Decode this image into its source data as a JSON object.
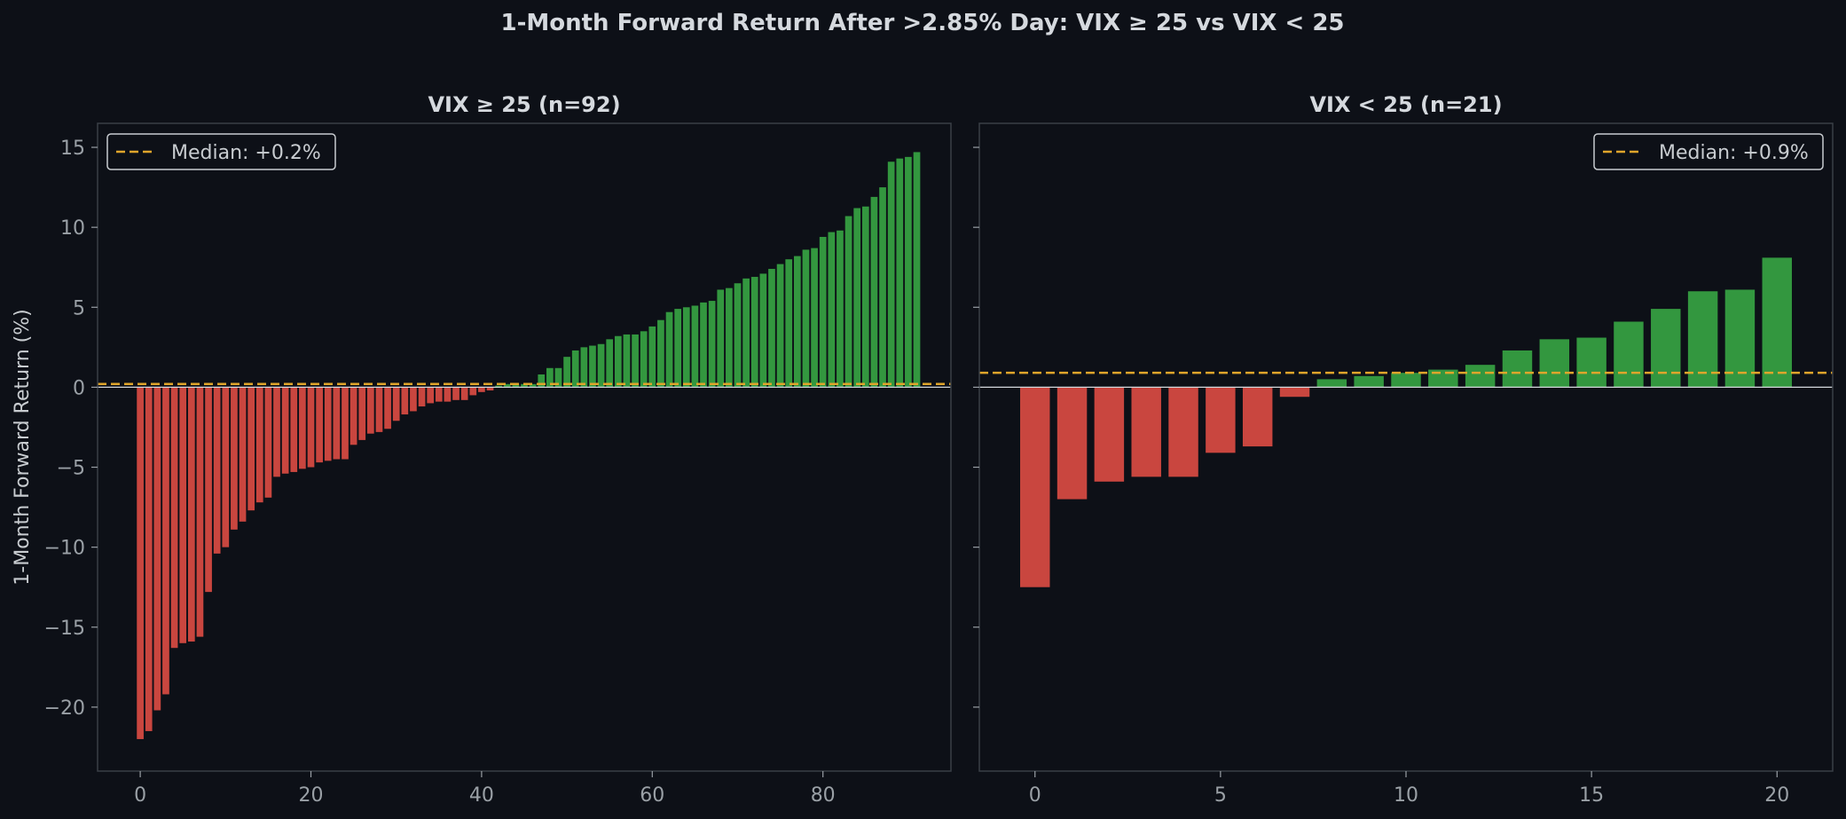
{
  "figure": {
    "title": "1-Month Forward Return After >2.85% Day: VIX ≥ 25 vs VIX < 25",
    "ylabel": "1-Month Forward Return (%)"
  },
  "colors": {
    "background": "#0d1017",
    "axes_face": "#0d1017",
    "spine": "#3a3f47",
    "tick_text": "#9aa0a6",
    "title_text": "#d5d9de",
    "negative_bar": "#c9463f",
    "positive_bar": "#33973f",
    "median_line": "#e0a52b",
    "zero_line": "#d5d9de",
    "legend_edge": "#c8ccd0"
  },
  "chart_data": [
    {
      "type": "bar",
      "title": "VIX ≥ 25 (n=92)",
      "xlabel": "",
      "ylabel": "1-Month Forward Return (%)",
      "ylim": [
        -24,
        16.5
      ],
      "xlim": [
        -5,
        95
      ],
      "xticks": [
        0,
        20,
        40,
        60,
        80
      ],
      "yticks": [
        -20,
        -15,
        -10,
        -5,
        0,
        5,
        10,
        15
      ],
      "median": 0.2,
      "legend": {
        "label": "Median: +0.2%",
        "placement": "top-left"
      },
      "grid": false,
      "values": [
        -22.0,
        -21.5,
        -20.2,
        -19.2,
        -16.3,
        -16.0,
        -15.9,
        -15.6,
        -12.8,
        -10.4,
        -10.0,
        -8.9,
        -8.4,
        -7.7,
        -7.2,
        -6.9,
        -5.6,
        -5.4,
        -5.3,
        -5.1,
        -5.0,
        -4.7,
        -4.6,
        -4.5,
        -4.5,
        -3.6,
        -3.3,
        -2.9,
        -2.8,
        -2.6,
        -2.1,
        -1.7,
        -1.5,
        -1.2,
        -1.0,
        -0.9,
        -0.9,
        -0.8,
        -0.8,
        -0.5,
        -0.3,
        -0.2,
        0.1,
        0.2,
        0.2,
        0.2,
        0.2,
        0.8,
        1.2,
        1.2,
        1.9,
        2.3,
        2.5,
        2.6,
        2.7,
        3.0,
        3.2,
        3.3,
        3.3,
        3.5,
        3.8,
        4.2,
        4.7,
        4.9,
        5.0,
        5.1,
        5.3,
        5.4,
        6.1,
        6.2,
        6.5,
        6.8,
        6.9,
        7.1,
        7.4,
        7.7,
        8.0,
        8.2,
        8.6,
        8.7,
        9.4,
        9.7,
        9.8,
        10.7,
        11.2,
        11.3,
        11.9,
        12.5,
        14.1,
        14.3,
        14.4,
        14.7
      ]
    },
    {
      "type": "bar",
      "title": "VIX < 25 (n=21)",
      "xlabel": "",
      "ylabel": "",
      "ylim": [
        -24,
        16.5
      ],
      "xlim": [
        -1.5,
        21.5
      ],
      "xticks": [
        0,
        5,
        10,
        15,
        20
      ],
      "yticks": [
        -20,
        -15,
        -10,
        -5,
        0,
        5,
        10,
        15
      ],
      "median": 0.9,
      "legend": {
        "label": "Median: +0.9%",
        "placement": "top-right"
      },
      "grid": false,
      "values": [
        -12.5,
        -7.0,
        -5.9,
        -5.6,
        -5.6,
        -4.1,
        -3.7,
        -0.6,
        0.5,
        0.7,
        0.9,
        1.1,
        1.4,
        2.3,
        3.0,
        3.1,
        4.1,
        4.9,
        6.0,
        6.1,
        8.1
      ]
    }
  ]
}
